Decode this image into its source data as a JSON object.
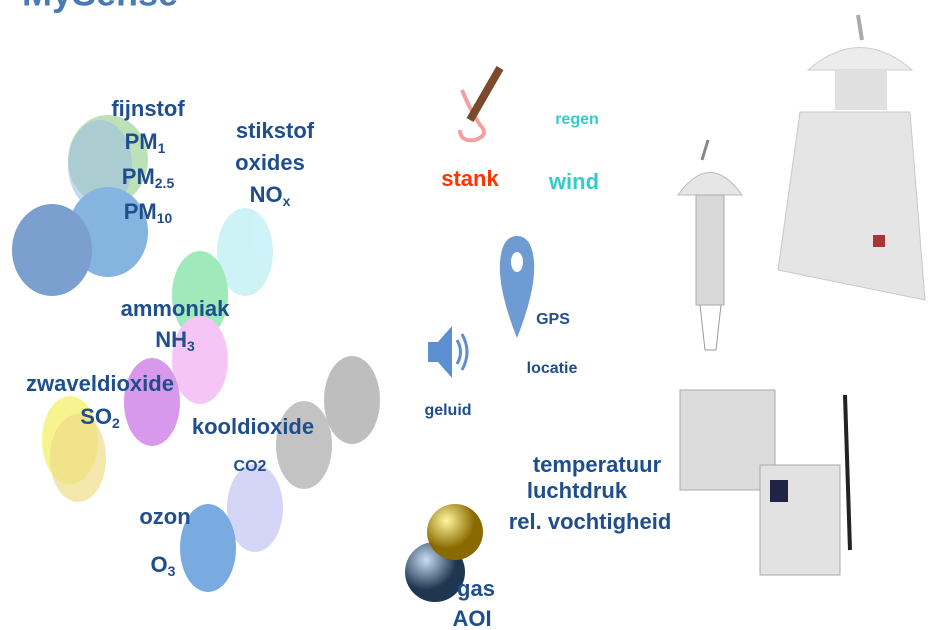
{
  "title": "MySense",
  "pollutants": {
    "fijnstof": "fijnstof",
    "pm1": {
      "text": "PM",
      "sub": "1"
    },
    "pm25": {
      "text": "PM",
      "sub": "2.5"
    },
    "pm10": {
      "text": "PM",
      "sub": "10"
    },
    "stikstof": "stikstof",
    "oxides": "oxides",
    "nox": {
      "text": "NO",
      "sub": "x"
    },
    "ammoniak": "ammoniak",
    "nh3": {
      "text": "NH",
      "sub": "3"
    },
    "zwaveldioxide": "zwaveldioxide",
    "so2": {
      "text": "SO",
      "sub": "2"
    },
    "kooldioxide": "kooldioxide",
    "co2": "CO2",
    "ozon": "ozon",
    "o3": {
      "text": "O",
      "sub": "3"
    }
  },
  "sensors": {
    "stank": "stank",
    "regen": "regen",
    "wind": "wind",
    "gps": "GPS",
    "locatie": "locatie",
    "geluid": "geluid",
    "temperatuur": "temperatuur",
    "luchtdruk": "luchtdruk",
    "vochtigheid": "rel. vochtigheid",
    "gas": "gas",
    "aoi": "AOI"
  }
}
